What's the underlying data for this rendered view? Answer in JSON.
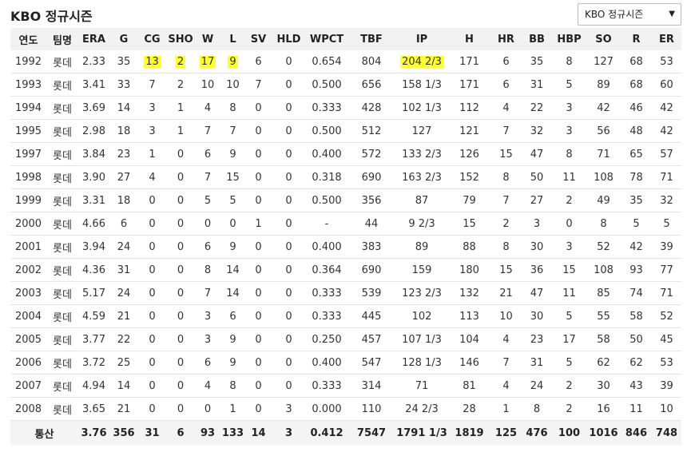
{
  "header": {
    "title": "KBO 정규시즌",
    "select": "KBO 정규시즌"
  },
  "table": {
    "columns": [
      "연도",
      "팀명",
      "ERA",
      "G",
      "CG",
      "SHO",
      "W",
      "L",
      "SV",
      "HLD",
      "WPCT",
      "TBF",
      "IP",
      "H",
      "HR",
      "BB",
      "HBP",
      "SO",
      "R",
      "ER"
    ],
    "rows": [
      [
        "1992",
        "롯데",
        "2.33",
        "35",
        "13",
        "2",
        "17",
        "9",
        "6",
        "0",
        "0.654",
        "804",
        "204 2/3",
        "171",
        "6",
        "35",
        "8",
        "127",
        "68",
        "53"
      ],
      [
        "1993",
        "롯데",
        "3.41",
        "33",
        "7",
        "2",
        "10",
        "10",
        "7",
        "0",
        "0.500",
        "656",
        "158 1/3",
        "171",
        "6",
        "31",
        "5",
        "89",
        "68",
        "60"
      ],
      [
        "1994",
        "롯데",
        "3.69",
        "14",
        "3",
        "1",
        "4",
        "8",
        "0",
        "0",
        "0.333",
        "428",
        "102 1/3",
        "112",
        "4",
        "22",
        "3",
        "42",
        "46",
        "42"
      ],
      [
        "1995",
        "롯데",
        "2.98",
        "18",
        "3",
        "1",
        "7",
        "7",
        "0",
        "0",
        "0.500",
        "512",
        "127",
        "121",
        "7",
        "32",
        "3",
        "56",
        "48",
        "42"
      ],
      [
        "1997",
        "롯데",
        "3.84",
        "23",
        "1",
        "0",
        "6",
        "9",
        "0",
        "0",
        "0.400",
        "572",
        "133 2/3",
        "126",
        "15",
        "47",
        "8",
        "71",
        "65",
        "57"
      ],
      [
        "1998",
        "롯데",
        "3.90",
        "27",
        "4",
        "0",
        "7",
        "15",
        "0",
        "0",
        "0.318",
        "690",
        "163 2/3",
        "152",
        "8",
        "50",
        "11",
        "108",
        "78",
        "71"
      ],
      [
        "1999",
        "롯데",
        "3.31",
        "18",
        "0",
        "0",
        "5",
        "5",
        "0",
        "0",
        "0.500",
        "356",
        "87",
        "79",
        "7",
        "27",
        "2",
        "49",
        "35",
        "32"
      ],
      [
        "2000",
        "롯데",
        "4.66",
        "6",
        "0",
        "0",
        "0",
        "0",
        "1",
        "0",
        "-",
        "44",
        "9 2/3",
        "15",
        "2",
        "3",
        "0",
        "8",
        "5",
        "5"
      ],
      [
        "2001",
        "롯데",
        "3.94",
        "24",
        "0",
        "0",
        "6",
        "9",
        "0",
        "0",
        "0.400",
        "383",
        "89",
        "88",
        "8",
        "30",
        "3",
        "52",
        "42",
        "39"
      ],
      [
        "2002",
        "롯데",
        "4.36",
        "31",
        "0",
        "0",
        "8",
        "14",
        "0",
        "0",
        "0.364",
        "690",
        "159",
        "180",
        "15",
        "36",
        "15",
        "108",
        "93",
        "77"
      ],
      [
        "2003",
        "롯데",
        "5.17",
        "24",
        "0",
        "0",
        "7",
        "14",
        "0",
        "0",
        "0.333",
        "539",
        "123 2/3",
        "132",
        "21",
        "47",
        "11",
        "85",
        "74",
        "71"
      ],
      [
        "2004",
        "롯데",
        "4.59",
        "21",
        "0",
        "0",
        "3",
        "6",
        "0",
        "0",
        "0.333",
        "445",
        "102",
        "113",
        "10",
        "30",
        "5",
        "55",
        "58",
        "52"
      ],
      [
        "2005",
        "롯데",
        "3.77",
        "22",
        "0",
        "0",
        "3",
        "9",
        "0",
        "0",
        "0.250",
        "457",
        "107 1/3",
        "104",
        "4",
        "23",
        "17",
        "58",
        "50",
        "45"
      ],
      [
        "2006",
        "롯데",
        "3.72",
        "25",
        "0",
        "0",
        "6",
        "9",
        "0",
        "0",
        "0.400",
        "547",
        "128 1/3",
        "146",
        "7",
        "31",
        "5",
        "62",
        "62",
        "53"
      ],
      [
        "2007",
        "롯데",
        "4.94",
        "14",
        "0",
        "0",
        "4",
        "8",
        "0",
        "0",
        "0.333",
        "314",
        "71",
        "81",
        "4",
        "24",
        "2",
        "30",
        "43",
        "39"
      ],
      [
        "2008",
        "롯데",
        "3.65",
        "21",
        "0",
        "0",
        "0",
        "1",
        "0",
        "3",
        "0.000",
        "110",
        "24 2/3",
        "28",
        "1",
        "8",
        "2",
        "16",
        "11",
        "10"
      ]
    ],
    "total": [
      "통산",
      "3.76",
      "356",
      "31",
      "6",
      "93",
      "133",
      "14",
      "3",
      "0.412",
      "7547",
      "1791 1/3",
      "1819",
      "125",
      "476",
      "100",
      "1016",
      "846",
      "748"
    ],
    "highlighted_cells": [
      [
        0,
        4
      ],
      [
        0,
        5
      ],
      [
        0,
        6
      ],
      [
        0,
        7
      ],
      [
        0,
        12
      ]
    ]
  }
}
